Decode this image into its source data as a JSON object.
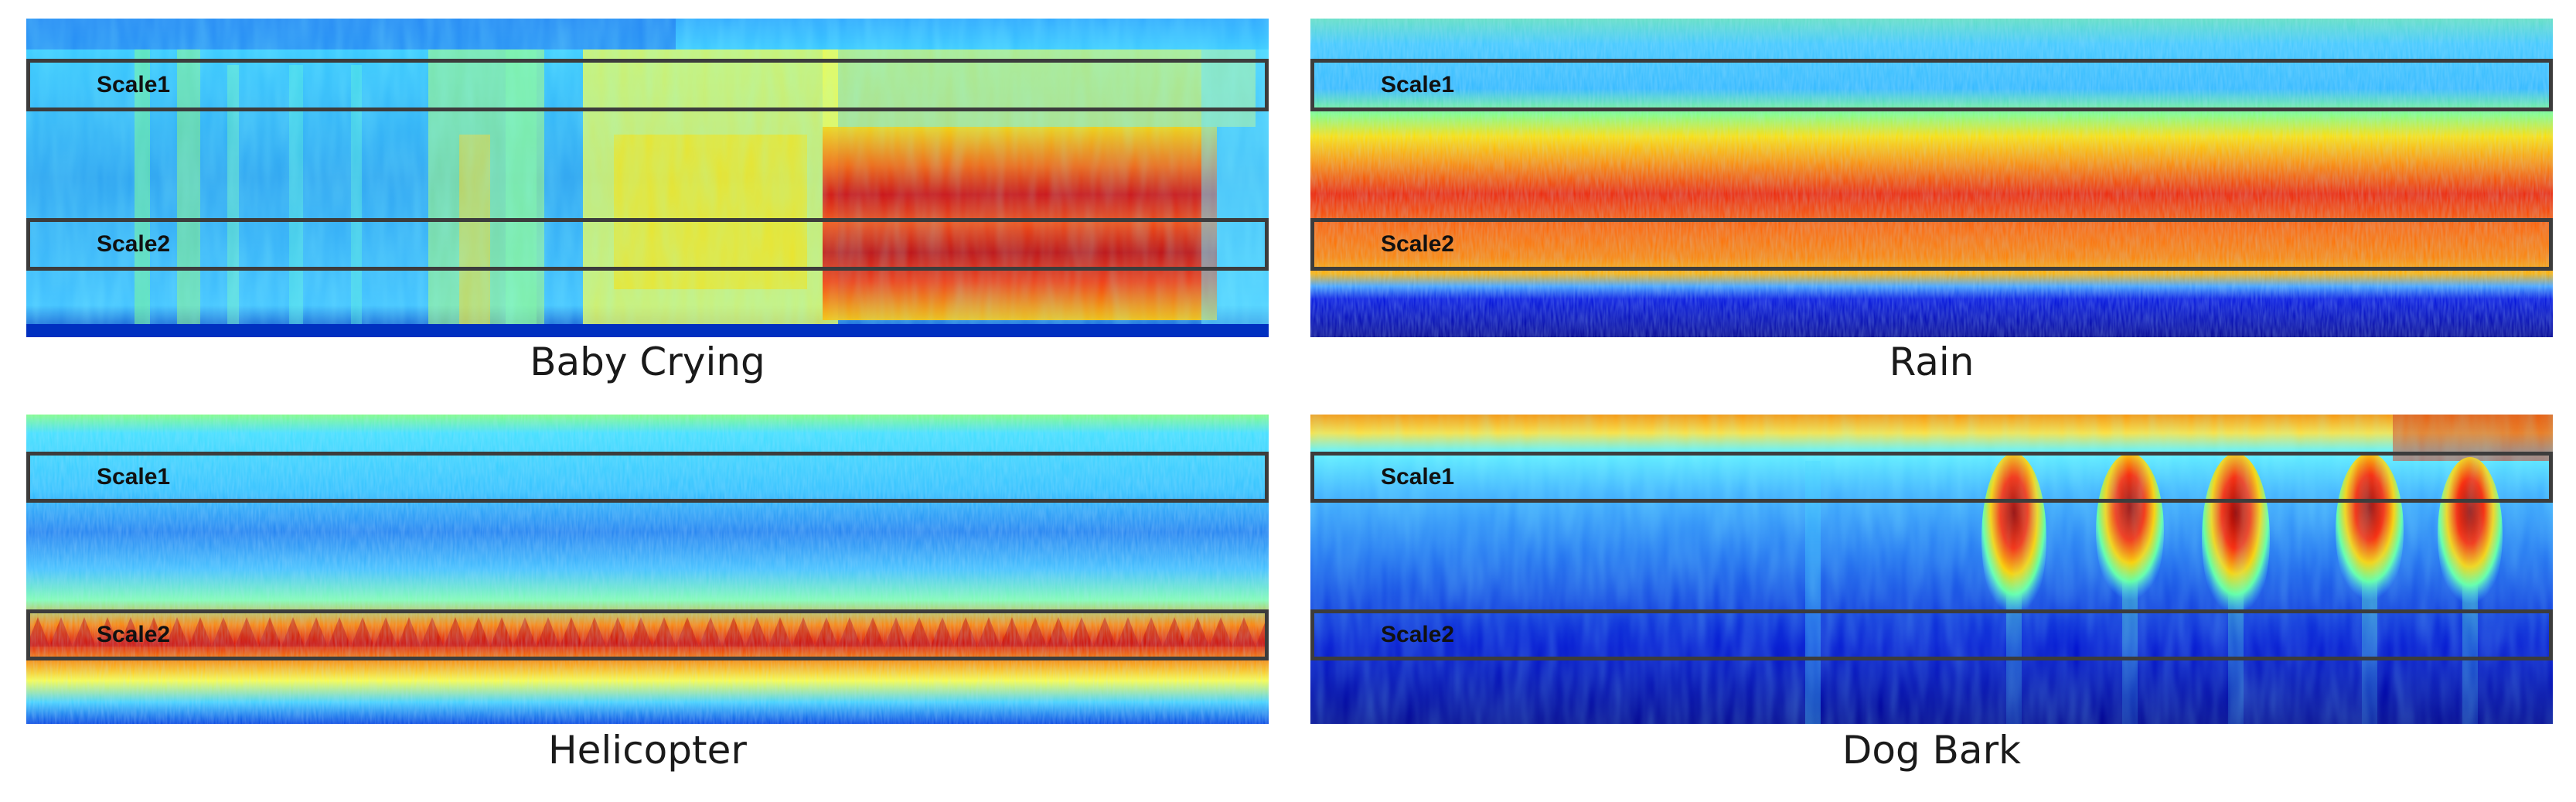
{
  "panels": [
    {
      "id": "baby",
      "caption": "Baby Crying",
      "scale1_label": "Scale1",
      "scale2_label": "Scale2"
    },
    {
      "id": "rain",
      "caption": "Rain",
      "scale1_label": "Scale1",
      "scale2_label": "Scale2"
    },
    {
      "id": "heli",
      "caption": "Helicopter",
      "scale1_label": "Scale1",
      "scale2_label": "Scale2"
    },
    {
      "id": "dog",
      "caption": "Dog Bark",
      "scale1_label": "Scale1",
      "scale2_label": "Scale2"
    }
  ],
  "colormap": [
    "#00008f",
    "#0000ff",
    "#0080ff",
    "#00ffff",
    "#80ff80",
    "#ffff00",
    "#ff8000",
    "#ff0000",
    "#800000"
  ]
}
